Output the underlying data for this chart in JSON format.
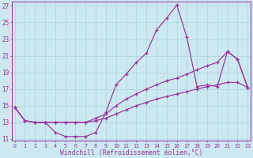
{
  "xlabel": "Windchill (Refroidissement éolien,°C)",
  "background_color": "#cce8f0",
  "line_color": "#993399",
  "grid_color": "#aad4dc",
  "xlim_min": -0.3,
  "xlim_max": 23.3,
  "ylim_min": 10.8,
  "ylim_max": 27.5,
  "xticks": [
    0,
    1,
    2,
    3,
    4,
    5,
    6,
    7,
    8,
    9,
    10,
    11,
    12,
    13,
    14,
    15,
    16,
    17,
    18,
    19,
    20,
    21,
    22,
    23
  ],
  "yticks": [
    11,
    13,
    15,
    17,
    19,
    21,
    23,
    25,
    27
  ],
  "line1_x": [
    0,
    1,
    2,
    3,
    4,
    5,
    6,
    7,
    8,
    9,
    10,
    11,
    12,
    13,
    14,
    15,
    16,
    17,
    18,
    19,
    20,
    21,
    22,
    23
  ],
  "line1_y": [
    14.8,
    13.2,
    13.0,
    13.0,
    11.8,
    11.3,
    11.3,
    11.3,
    11.8,
    14.2,
    17.5,
    18.8,
    20.2,
    21.3,
    24.1,
    25.5,
    27.1,
    23.2,
    17.3,
    17.5,
    17.3,
    21.5,
    20.6,
    17.2
  ],
  "line2_x": [
    0,
    1,
    2,
    3,
    4,
    5,
    6,
    7,
    8,
    9,
    10,
    11,
    12,
    13,
    14,
    15,
    16,
    17,
    18,
    19,
    20,
    21,
    22,
    23
  ],
  "line2_y": [
    14.8,
    13.2,
    13.0,
    13.0,
    13.0,
    13.0,
    13.0,
    13.0,
    13.5,
    14.0,
    15.0,
    15.8,
    16.4,
    17.0,
    17.5,
    18.0,
    18.3,
    18.8,
    19.3,
    19.8,
    20.2,
    21.5,
    20.6,
    17.2
  ],
  "line3_x": [
    0,
    1,
    2,
    3,
    4,
    5,
    6,
    7,
    8,
    9,
    10,
    11,
    12,
    13,
    14,
    15,
    16,
    17,
    18,
    19,
    20,
    21,
    22,
    23
  ],
  "line3_y": [
    14.8,
    13.2,
    13.0,
    13.0,
    13.0,
    13.0,
    13.0,
    13.0,
    13.2,
    13.5,
    14.0,
    14.5,
    15.0,
    15.4,
    15.8,
    16.1,
    16.4,
    16.7,
    17.0,
    17.3,
    17.5,
    17.8,
    17.8,
    17.2
  ]
}
